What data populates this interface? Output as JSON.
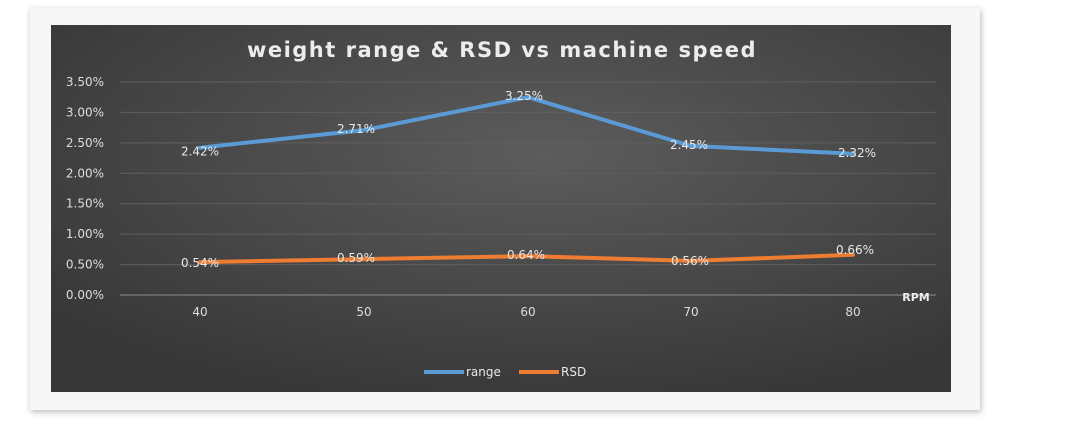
{
  "chart_data": {
    "type": "line",
    "title": "weight range & RSD vs machine speed",
    "xlabel": "RPM",
    "ylabel": "",
    "categories": [
      "40",
      "50",
      "60",
      "70",
      "80"
    ],
    "ylim": [
      0,
      3.5
    ],
    "yticks": [
      "0.00%",
      "0.50%",
      "1.00%",
      "1.50%",
      "2.00%",
      "2.50%",
      "3.00%",
      "3.50%"
    ],
    "grid": true,
    "legend": "bottom",
    "series": [
      {
        "name": "range",
        "color": "#5b9bd5",
        "values": [
          2.42,
          2.71,
          3.25,
          2.45,
          2.32
        ],
        "labels": [
          "2.42%",
          "2.71%",
          "3.25%",
          "2.45%",
          "2.32%"
        ]
      },
      {
        "name": "RSD",
        "color": "#ed7d31",
        "values": [
          0.54,
          0.59,
          0.64,
          0.56,
          0.66
        ],
        "labels": [
          "0.54%",
          "0.59%",
          "0.64%",
          "0.56%",
          "0.66%"
        ]
      }
    ]
  }
}
